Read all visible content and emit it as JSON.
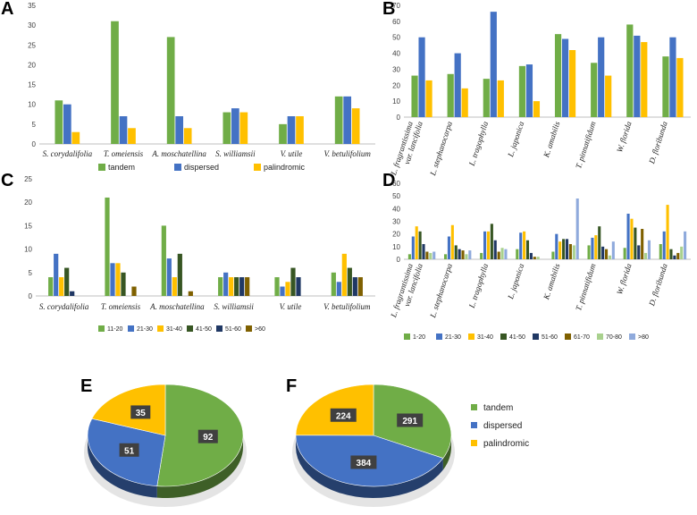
{
  "panels": {
    "A": "A",
    "B": "B",
    "C": "C",
    "D": "D",
    "E": "E",
    "F": "F"
  },
  "colors": {
    "green": "#70ad47",
    "blue": "#4472c4",
    "orange": "#ffc000",
    "darkgreen": "#375623",
    "navy": "#203864",
    "brown": "#7f6000",
    "lightgreen": "#a9d18e",
    "lightblue": "#8faadc"
  },
  "chart_data": [
    {
      "id": "A",
      "type": "bar",
      "categories": [
        "S. corydalifolia",
        "T. omeiensis",
        "A. moschatellina",
        "S. williamsii",
        "V. utile",
        "V. betulifolium"
      ],
      "series": [
        {
          "name": "tandem",
          "color": "#70ad47",
          "values": [
            11,
            31,
            27,
            8,
            5,
            12
          ]
        },
        {
          "name": "dispersed",
          "color": "#4472c4",
          "values": [
            10,
            7,
            7,
            9,
            7,
            12
          ]
        },
        {
          "name": "palindromic",
          "color": "#ffc000",
          "values": [
            3,
            4,
            4,
            8,
            7,
            9
          ]
        }
      ],
      "ylim": [
        0,
        35
      ],
      "yticks": [
        0,
        5,
        10,
        15,
        20,
        25,
        30,
        35
      ],
      "legend": "bottom"
    },
    {
      "id": "B",
      "type": "bar",
      "categories": [
        "L. fragrantissima var. lancifolia",
        "L. stephanocarpa",
        "L. tragophylla",
        "L. japonica",
        "K. amabilis",
        "T. pinnatifidum",
        "W. florida",
        "D. floribunda"
      ],
      "series": [
        {
          "name": "tandem",
          "color": "#70ad47",
          "values": [
            26,
            27,
            24,
            32,
            52,
            34,
            58,
            38
          ]
        },
        {
          "name": "dispersed",
          "color": "#4472c4",
          "values": [
            50,
            40,
            66,
            33,
            49,
            50,
            51,
            50
          ]
        },
        {
          "name": "palindromic",
          "color": "#ffc000",
          "values": [
            23,
            18,
            23,
            10,
            42,
            26,
            47,
            37
          ]
        }
      ],
      "ylim": [
        0,
        70
      ],
      "yticks": [
        0,
        10,
        20,
        30,
        40,
        50,
        60,
        70
      ]
    },
    {
      "id": "C",
      "type": "bar",
      "categories": [
        "S. corydalifolia",
        "T. omeiensis",
        "A. moschatellina",
        "S. williamsii",
        "V. utile",
        "V. betulifolium"
      ],
      "series": [
        {
          "name": "11-20",
          "color": "#70ad47",
          "values": [
            4,
            21,
            15,
            4,
            4,
            5
          ]
        },
        {
          "name": "21-30",
          "color": "#4472c4",
          "values": [
            9,
            7,
            8,
            5,
            2,
            3
          ]
        },
        {
          "name": "31-40",
          "color": "#ffc000",
          "values": [
            4,
            7,
            4,
            4,
            3,
            9
          ]
        },
        {
          "name": "41-50",
          "color": "#375623",
          "values": [
            6,
            5,
            9,
            4,
            6,
            6
          ]
        },
        {
          "name": "51-60",
          "color": "#203864",
          "values": [
            1,
            0,
            0,
            4,
            4,
            4
          ]
        },
        {
          "name": ">60",
          "color": "#7f6000",
          "values": [
            0,
            2,
            1,
            4,
            0,
            4
          ]
        }
      ],
      "ylim": [
        0,
        25
      ],
      "yticks": [
        0,
        5,
        10,
        15,
        20,
        25
      ],
      "legend": "bottom"
    },
    {
      "id": "D",
      "type": "bar",
      "categories": [
        "L. fragrantissima var. lancifolia",
        "L. stephanocarpa",
        "L. tragophylla",
        "L. japonica",
        "K. amabilis",
        "T. pinnatifidum",
        "W. florida",
        "D. floribunda"
      ],
      "series": [
        {
          "name": "1-20",
          "color": "#70ad47",
          "values": [
            4,
            4,
            5,
            8,
            6,
            11,
            9,
            12
          ]
        },
        {
          "name": "21-30",
          "color": "#4472c4",
          "values": [
            18,
            18,
            22,
            21,
            20,
            17,
            36,
            22
          ]
        },
        {
          "name": "31-40",
          "color": "#ffc000",
          "values": [
            26,
            27,
            22,
            22,
            14,
            19,
            32,
            43
          ]
        },
        {
          "name": "41-50",
          "color": "#375623",
          "values": [
            22,
            11,
            28,
            15,
            16,
            26,
            25,
            8
          ]
        },
        {
          "name": "51-60",
          "color": "#203864",
          "values": [
            12,
            8,
            15,
            5,
            16,
            10,
            11,
            3
          ]
        },
        {
          "name": "61-70",
          "color": "#7f6000",
          "values": [
            6,
            7,
            6,
            2,
            12,
            8,
            24,
            5
          ]
        },
        {
          "name": "70-80",
          "color": "#a9d18e",
          "values": [
            5,
            4,
            9,
            2,
            11,
            3,
            5,
            10
          ]
        },
        {
          "name": ">80",
          "color": "#8faadc",
          "values": [
            6,
            7,
            8,
            0,
            48,
            14,
            15,
            22
          ]
        }
      ],
      "ylim": [
        0,
        60
      ],
      "yticks": [
        0,
        10,
        20,
        30,
        40,
        50,
        60
      ],
      "legend": "bottom"
    },
    {
      "id": "E",
      "type": "pie",
      "labels": [
        "tandem",
        "dispersed",
        "palindromic"
      ],
      "values": [
        92,
        51,
        35
      ],
      "colors": [
        "#70ad47",
        "#4472c4",
        "#ffc000"
      ]
    },
    {
      "id": "F",
      "type": "pie",
      "labels": [
        "tandem",
        "dispersed",
        "palindromic"
      ],
      "values": [
        291,
        384,
        224
      ],
      "colors": [
        "#70ad47",
        "#4472c4",
        "#ffc000"
      ],
      "legend": "right"
    }
  ]
}
